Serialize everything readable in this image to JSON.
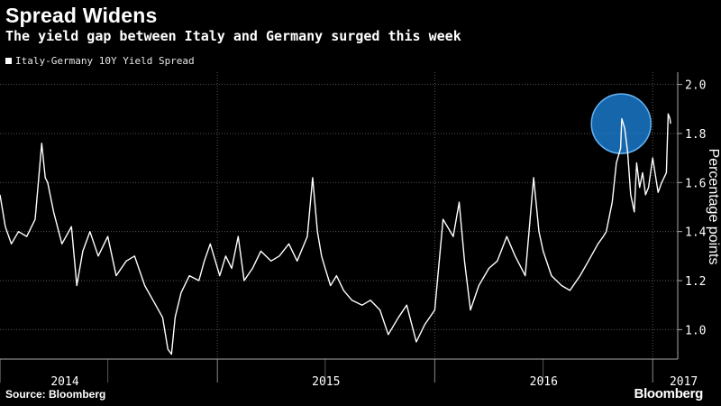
{
  "title": "Spread Widens",
  "subtitle": "The yield gap between Italy and Germany surged this week",
  "source": "Source: Bloomberg",
  "brand": "Bloomberg",
  "colors": {
    "background": "#000000",
    "line": "#ffffff",
    "grid": "#555555",
    "highlight_fill": "#1e88e5",
    "highlight_stroke": "#64b5f6"
  },
  "chart_data": {
    "type": "line",
    "legend": [
      "Italy-Germany 10Y Yield Spread"
    ],
    "ylabel": "Percentage points",
    "ylim": [
      0.88,
      2.05
    ],
    "yticks": [
      "1.0",
      "1.2",
      "1.4",
      "1.6",
      "1.8",
      "2.0"
    ],
    "xlim": [
      "2014-01-01",
      "2017-02-12"
    ],
    "xticks": [
      "2014",
      "2015",
      "2016",
      "2017"
    ],
    "grid": true,
    "legend_position": "top-left",
    "highlight": {
      "x": "2016-11-09",
      "y": 1.84
    },
    "series": [
      {
        "name": "Italy-Germany 10Y Yield Spread",
        "x": [
          "2014-01-01",
          "2014-01-10",
          "2014-01-20",
          "2014-02-01",
          "2014-02-15",
          "2014-03-01",
          "2014-03-12",
          "2014-03-18",
          "2014-03-22",
          "2014-04-01",
          "2014-04-15",
          "2014-05-01",
          "2014-05-10",
          "2014-05-20",
          "2014-06-01",
          "2014-06-15",
          "2014-07-01",
          "2014-07-15",
          "2014-08-01",
          "2014-08-15",
          "2014-09-01",
          "2014-09-15",
          "2014-10-01",
          "2014-10-10",
          "2014-10-16",
          "2014-10-22",
          "2014-11-01",
          "2014-11-15",
          "2014-12-01",
          "2014-12-10",
          "2014-12-20",
          "2015-01-05",
          "2015-01-15",
          "2015-01-25",
          "2015-02-05",
          "2015-02-15",
          "2015-03-01",
          "2015-03-15",
          "2015-04-01",
          "2015-04-15",
          "2015-05-01",
          "2015-05-15",
          "2015-06-01",
          "2015-06-10",
          "2015-06-18",
          "2015-06-25",
          "2015-07-01",
          "2015-07-10",
          "2015-07-20",
          "2015-08-01",
          "2015-08-15",
          "2015-09-01",
          "2015-09-15",
          "2015-10-01",
          "2015-10-15",
          "2015-11-01",
          "2015-11-15",
          "2015-12-01",
          "2015-12-15",
          "2016-01-01",
          "2016-01-15",
          "2016-02-01",
          "2016-02-11",
          "2016-02-20",
          "2016-03-01",
          "2016-03-15",
          "2016-04-01",
          "2016-04-15",
          "2016-05-01",
          "2016-05-15",
          "2016-06-01",
          "2016-06-15",
          "2016-06-24",
          "2016-07-01",
          "2016-07-15",
          "2016-08-01",
          "2016-08-15",
          "2016-09-01",
          "2016-09-15",
          "2016-10-01",
          "2016-10-10",
          "2016-10-15",
          "2016-10-25",
          "2016-11-01",
          "2016-11-08",
          "2016-11-10",
          "2016-11-15",
          "2016-11-20",
          "2016-11-25",
          "2016-12-01",
          "2016-12-05",
          "2016-12-10",
          "2016-12-15",
          "2016-12-20",
          "2016-12-25",
          "2017-01-01",
          "2017-01-10",
          "2017-01-16",
          "2017-01-20",
          "2017-01-24",
          "2017-01-27",
          "2017-01-30",
          "2017-01-31"
        ],
        "y": [
          1.55,
          1.42,
          1.35,
          1.4,
          1.38,
          1.45,
          1.76,
          1.62,
          1.6,
          1.48,
          1.35,
          1.42,
          1.18,
          1.32,
          1.4,
          1.3,
          1.38,
          1.22,
          1.28,
          1.3,
          1.18,
          1.12,
          1.05,
          0.92,
          0.9,
          1.05,
          1.15,
          1.22,
          1.2,
          1.28,
          1.35,
          1.22,
          1.3,
          1.25,
          1.38,
          1.2,
          1.25,
          1.32,
          1.28,
          1.3,
          1.35,
          1.28,
          1.38,
          1.62,
          1.4,
          1.3,
          1.25,
          1.18,
          1.22,
          1.16,
          1.12,
          1.1,
          1.12,
          1.08,
          0.98,
          1.05,
          1.1,
          0.95,
          1.02,
          1.08,
          1.45,
          1.38,
          1.52,
          1.28,
          1.08,
          1.18,
          1.25,
          1.28,
          1.38,
          1.3,
          1.22,
          1.62,
          1.4,
          1.32,
          1.22,
          1.18,
          1.16,
          1.22,
          1.28,
          1.35,
          1.38,
          1.4,
          1.52,
          1.68,
          1.74,
          1.86,
          1.82,
          1.72,
          1.55,
          1.48,
          1.68,
          1.58,
          1.64,
          1.55,
          1.58,
          1.7,
          1.56,
          1.6,
          1.62,
          1.64,
          1.88,
          1.86,
          1.84
        ]
      }
    ]
  }
}
